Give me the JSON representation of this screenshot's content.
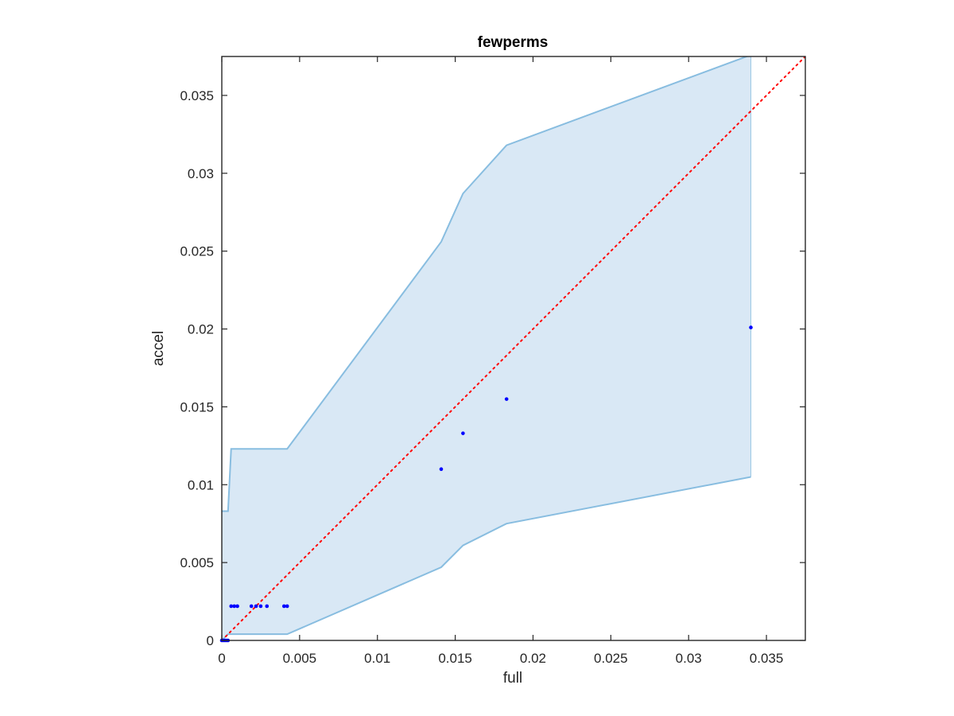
{
  "chart_data": {
    "type": "scatter",
    "title": "fewperms",
    "xlabel": "full",
    "ylabel": "accel",
    "xlim": [
      0,
      0.0375
    ],
    "ylim": [
      0,
      0.0375
    ],
    "xticks": [
      0,
      0.005,
      0.01,
      0.015,
      0.02,
      0.025,
      0.03,
      0.035
    ],
    "yticks": [
      0,
      0.005,
      0.01,
      0.015,
      0.02,
      0.025,
      0.03,
      0.035
    ],
    "xtick_labels": [
      "0",
      "0.005",
      "0.01",
      "0.015",
      "0.02",
      "0.025",
      "0.03",
      "0.035"
    ],
    "ytick_labels": [
      "0",
      "0.005",
      "0.01",
      "0.015",
      "0.02",
      "0.025",
      "0.03",
      "0.035"
    ],
    "grid": false,
    "series": [
      {
        "type": "scatter",
        "color": "#0000ff",
        "points": [
          [
            0.0,
            0.0
          ],
          [
            0.0001,
            0.0
          ],
          [
            0.0002,
            0.0
          ],
          [
            0.0003,
            0.0
          ],
          [
            0.0004,
            0.0
          ],
          [
            0.0006,
            0.0022
          ],
          [
            0.0008,
            0.0022
          ],
          [
            0.001,
            0.0022
          ],
          [
            0.0019,
            0.0022
          ],
          [
            0.0022,
            0.0022
          ],
          [
            0.0025,
            0.0022
          ],
          [
            0.0029,
            0.0022
          ],
          [
            0.004,
            0.0022
          ],
          [
            0.0042,
            0.0022
          ],
          [
            0.0141,
            0.011
          ],
          [
            0.0155,
            0.0133
          ],
          [
            0.0183,
            0.0155
          ],
          [
            0.034,
            0.0201
          ]
        ]
      },
      {
        "type": "area-band",
        "fill": "#d9e8f5",
        "stroke": "#88bde0",
        "x": [
          0.0,
          0.0004,
          0.0006,
          0.0042,
          0.0141,
          0.0155,
          0.0183,
          0.034
        ],
        "lower": [
          0.0,
          0.0004,
          0.0004,
          0.0004,
          0.0047,
          0.0061,
          0.0075,
          0.0105
        ],
        "upper": [
          0.0083,
          0.0083,
          0.0123,
          0.0123,
          0.0256,
          0.0287,
          0.0318,
          0.0376
        ]
      },
      {
        "type": "reference-line",
        "style": "dotted",
        "color": "#ff0000",
        "x": [
          0,
          0.0375
        ],
        "y": [
          0,
          0.0375
        ]
      }
    ]
  }
}
